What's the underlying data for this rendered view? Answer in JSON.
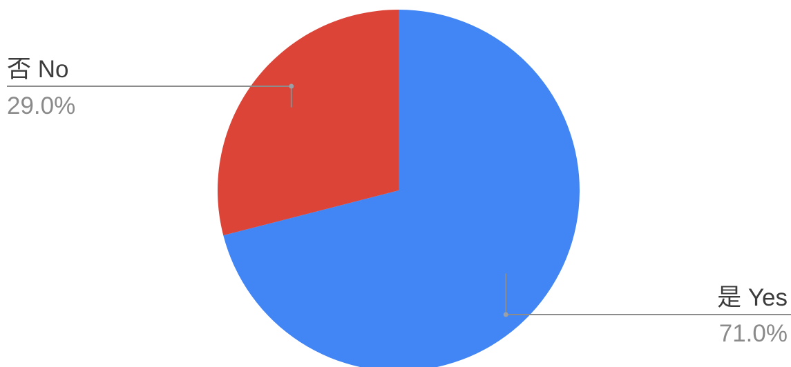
{
  "chart_data": {
    "type": "pie",
    "categories": [
      "是 Yes",
      "否 No"
    ],
    "values": [
      71.0,
      29.0
    ],
    "value_labels": [
      "71.0%",
      "29.0%"
    ],
    "colors": [
      "#4285f4",
      "#db4437"
    ],
    "title": "",
    "legend": "none",
    "label_style": "external-callouts"
  }
}
